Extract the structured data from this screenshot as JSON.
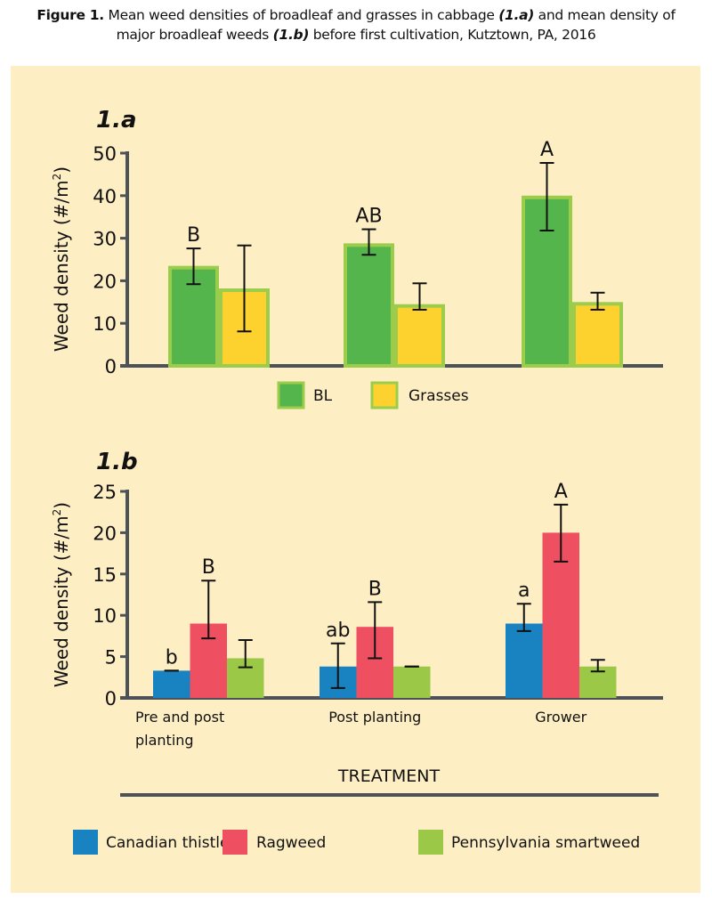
{
  "caption": {
    "figure_label": "Figure 1.",
    "part1": " Mean weed densities of broadleaf and grasses in cabbage ",
    "ref_a": "(1.a)",
    "part2": " and mean density of",
    "part3": "major broadleaf weeds ",
    "ref_b": "(1.b)",
    "part4": " before first cultivation, Kutztown, PA, 2016"
  },
  "colors": {
    "background": "#feeec4",
    "axis": "#4d5259",
    "bl": "#54b54c",
    "grasses": "#fdd22f",
    "bar_outline_a": "#9bcc4c",
    "canadian_thistle": "#1883c0",
    "ragweed": "#ee5061",
    "pennsylvania_smartweed": "#9cc847"
  },
  "chart_data": [
    {
      "type": "bar",
      "panel_label": "1.a",
      "title": "1.a",
      "xlabel": "",
      "ylabel": "Weed density (#/m2)",
      "ylabel_main": "Weed density (#/m",
      "ylabel_sup": "2",
      "ylabel_end": ")",
      "ylim": [
        0,
        50
      ],
      "yticks": [
        0,
        10,
        20,
        30,
        40,
        50
      ],
      "grid": false,
      "legend_position": "bottom-center",
      "categories": [
        "Pre and post planting",
        "Post planting",
        "Grower"
      ],
      "series": [
        {
          "name": "BL",
          "color_key": "bl",
          "values": [
            23.5,
            28.8,
            40.0
          ],
          "err_low": [
            19.2,
            26.1,
            31.8
          ],
          "err_high": [
            27.6,
            32.1,
            47.7
          ],
          "annotations": [
            "B",
            "AB",
            "A"
          ]
        },
        {
          "name": "Grasses",
          "color_key": "grasses",
          "values": [
            18.2,
            14.5,
            15.0
          ],
          "err_low": [
            8.1,
            13.2,
            13.2
          ],
          "err_high": [
            28.3,
            19.4,
            17.2
          ],
          "annotations": [
            "",
            "",
            ""
          ]
        }
      ]
    },
    {
      "type": "bar",
      "panel_label": "1.b",
      "title": "1.b",
      "xlabel": "TREATMENT",
      "ylabel": "Weed density (#/m2)",
      "ylabel_main": "Weed density (#/m",
      "ylabel_sup": "2",
      "ylabel_end": ")",
      "ylim": [
        0,
        25
      ],
      "yticks": [
        0,
        5,
        10,
        15,
        20,
        25
      ],
      "grid": false,
      "legend_position": "bottom",
      "categories": [
        "Pre and post planting",
        "Post planting",
        "Grower"
      ],
      "category_lines": [
        [
          "Pre and post",
          "planting"
        ],
        [
          "Post planting"
        ],
        [
          "Grower"
        ]
      ],
      "series": [
        {
          "name": "Canadian thistle",
          "color_key": "canadian_thistle",
          "values": [
            3.3,
            3.8,
            9.0
          ],
          "err_low": [
            3.3,
            1.2,
            8.1
          ],
          "err_high": [
            3.3,
            6.6,
            11.4
          ],
          "annotations": [
            "b",
            "ab",
            "a"
          ]
        },
        {
          "name": "Ragweed",
          "color_key": "ragweed",
          "values": [
            9.0,
            8.6,
            20.0
          ],
          "err_low": [
            7.2,
            4.8,
            16.5
          ],
          "err_high": [
            14.2,
            11.6,
            23.4
          ],
          "annotations": [
            "B",
            "B",
            "A"
          ]
        },
        {
          "name": "Pennsylvania smartweed",
          "color_key": "pennsylvania_smartweed",
          "values": [
            4.8,
            3.8,
            3.8
          ],
          "err_low": [
            3.7,
            3.8,
            3.2
          ],
          "err_high": [
            7.0,
            3.8,
            4.6
          ],
          "annotations": [
            "",
            "",
            ""
          ]
        }
      ]
    }
  ]
}
